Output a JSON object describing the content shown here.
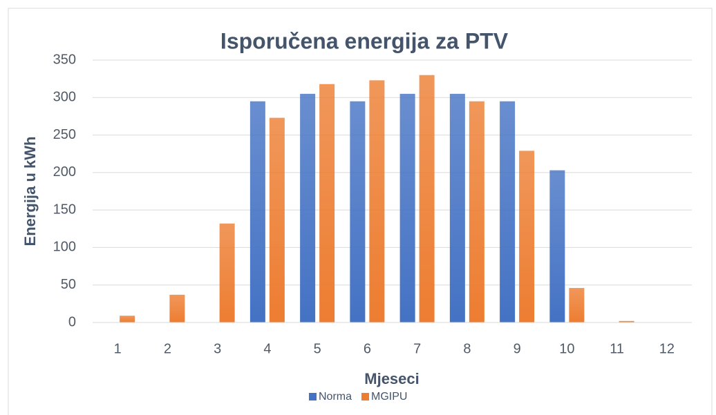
{
  "chart_data": {
    "type": "bar",
    "title": "Isporučena energija za PTV",
    "x_label": "Mjeseci",
    "y_label": "Energija u kWh",
    "categories": [
      "1",
      "2",
      "3",
      "4",
      "5",
      "6",
      "7",
      "8",
      "9",
      "10",
      "11",
      "12"
    ],
    "series": [
      {
        "name": "Norma",
        "color": "#4472c4",
        "values": [
          0,
          0,
          0,
          295,
          305,
          295,
          305,
          305,
          295,
          203,
          0,
          0
        ]
      },
      {
        "name": "MGIPU",
        "color": "#ed7d31",
        "values": [
          9,
          37,
          132,
          273,
          318,
          323,
          330,
          295,
          229,
          46,
          2,
          0
        ]
      }
    ],
    "ylim": [
      0,
      350
    ],
    "yticks": [
      0,
      50,
      100,
      150,
      200,
      250,
      300,
      350
    ],
    "grid": true,
    "legend": "bottom"
  }
}
